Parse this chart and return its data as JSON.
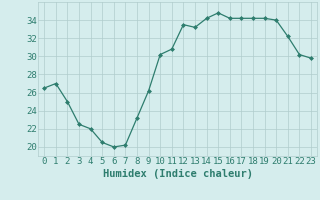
{
  "x": [
    0,
    1,
    2,
    3,
    4,
    5,
    6,
    7,
    8,
    9,
    10,
    11,
    12,
    13,
    14,
    15,
    16,
    17,
    18,
    19,
    20,
    21,
    22,
    23
  ],
  "y": [
    26.5,
    27.0,
    25.0,
    22.5,
    22.0,
    20.5,
    20.0,
    20.2,
    23.2,
    26.2,
    30.2,
    30.8,
    33.5,
    33.2,
    34.2,
    34.8,
    34.2,
    34.2,
    34.2,
    34.2,
    34.0,
    32.2,
    30.2,
    29.8
  ],
  "line_color": "#2e7d6e",
  "marker": "D",
  "markersize": 2.0,
  "linewidth": 0.9,
  "xlabel": "Humidex (Indice chaleur)",
  "ylim": [
    19,
    36
  ],
  "yticks": [
    20,
    22,
    24,
    26,
    28,
    30,
    32,
    34
  ],
  "xlim": [
    -0.5,
    23.5
  ],
  "xticks": [
    0,
    1,
    2,
    3,
    4,
    5,
    6,
    7,
    8,
    9,
    10,
    11,
    12,
    13,
    14,
    15,
    16,
    17,
    18,
    19,
    20,
    21,
    22,
    23
  ],
  "bg_color": "#d5eded",
  "grid_color": "#b0cccc",
  "font_color": "#2e7d6e",
  "tick_fontsize": 6.5,
  "xlabel_fontsize": 7.5
}
